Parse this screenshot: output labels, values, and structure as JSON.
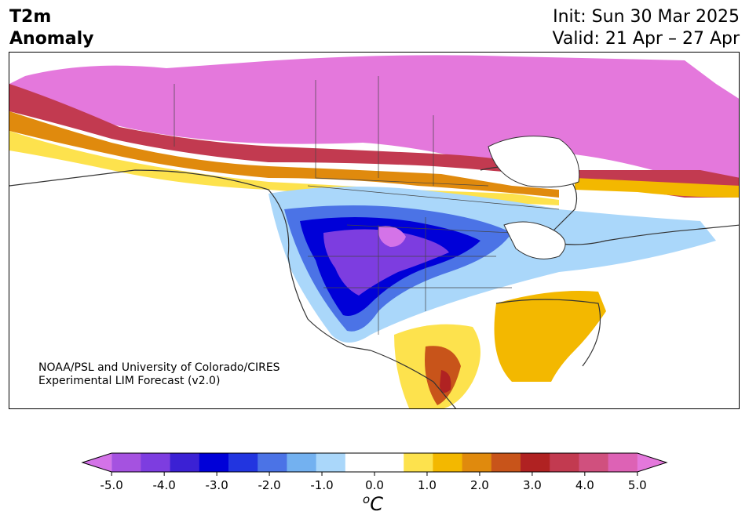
{
  "header": {
    "title_line1": "T2m",
    "title_line2": "Anomaly",
    "init": "Init: Sun 30 Mar 2025",
    "valid": "Valid: 21 Apr – 27 Apr"
  },
  "credit": {
    "line1": "NOAA/PSL and University of Colorado/CIRES",
    "line2": "Experimental LIM Forecast (v2.0)"
  },
  "colorbar": {
    "colors": [
      "#d473e8",
      "#a552e0",
      "#7d3de0",
      "#3b21d4",
      "#0000d8",
      "#2235e0",
      "#4b73e6",
      "#73b1f0",
      "#aad7fa",
      "#ffffff",
      "#ffffff",
      "#fde24d",
      "#f3b800",
      "#e08a0d",
      "#c8541a",
      "#b02222",
      "#c23a50",
      "#d0507e",
      "#dd62b5",
      "#e478dc"
    ],
    "ticks": [
      "-5.0",
      "-4.0",
      "-3.0",
      "-2.0",
      "-1.0",
      "0.0",
      "1.0",
      "2.0",
      "3.0",
      "4.0",
      "5.0"
    ],
    "unit_base": "o",
    "unit_letter": "C"
  },
  "colors": {
    "land_outline": "#333333",
    "water": "#ffffff"
  }
}
